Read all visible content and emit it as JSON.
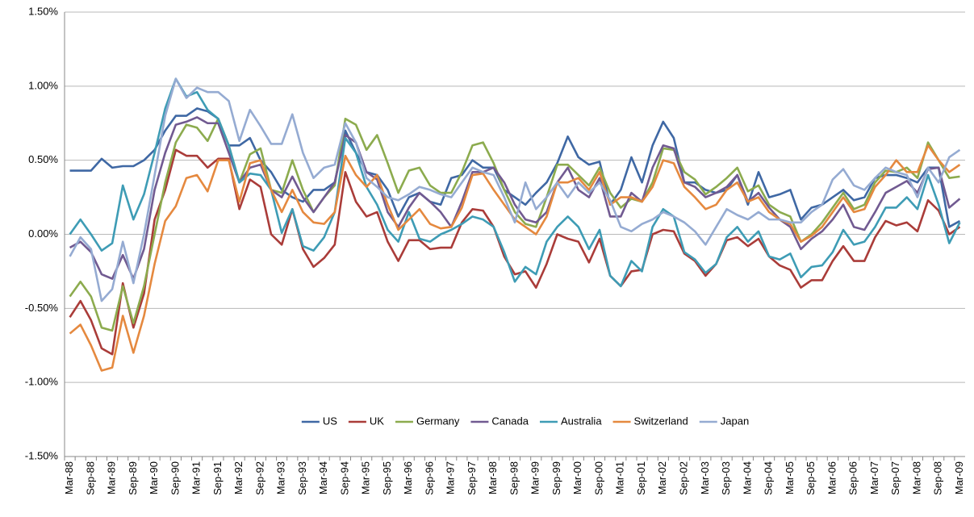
{
  "chart_data": {
    "type": "line",
    "categories": [
      "Mar-88",
      null,
      "Sep-88",
      null,
      "Mar-89",
      null,
      "Sep-89",
      null,
      "Mar-90",
      null,
      "Sep-90",
      null,
      "Mar-91",
      null,
      "Sep-91",
      null,
      "Mar-92",
      null,
      "Sep-92",
      null,
      "Mar-93",
      null,
      "Sep-93",
      null,
      "Mar-94",
      null,
      "Sep-94",
      null,
      "Mar-95",
      null,
      "Sep-95",
      null,
      "Mar-96",
      null,
      "Sep-96",
      null,
      "Mar-97",
      null,
      "Sep-97",
      null,
      "Mar-98",
      null,
      "Sep-98",
      null,
      "Mar-99",
      null,
      "Sep-99",
      null,
      "Mar-00",
      null,
      "Sep-00",
      null,
      "Mar-01",
      null,
      "Sep-01",
      null,
      "Mar-02",
      null,
      "Sep-02",
      null,
      "Mar-03",
      null,
      "Sep-03",
      null,
      "Mar-04",
      null,
      "Sep-04",
      null,
      "Mar-05",
      null,
      "Sep-05",
      null,
      "Mar-06",
      null,
      "Sep-06",
      null,
      "Mar-07",
      null,
      "Sep-07",
      null,
      "Mar-08",
      null,
      "Sep-08",
      null,
      "Mar-09"
    ],
    "series": [
      {
        "name": "US",
        "color": "#3f68a4",
        "values": [
          0.43,
          0.43,
          0.43,
          0.51,
          0.45,
          0.46,
          0.46,
          0.5,
          0.57,
          0.7,
          0.8,
          0.8,
          0.85,
          0.83,
          0.78,
          0.6,
          0.6,
          0.65,
          0.5,
          0.42,
          0.3,
          0.25,
          0.22,
          0.3,
          0.3,
          0.35,
          0.7,
          0.55,
          0.42,
          0.4,
          0.3,
          0.12,
          0.25,
          0.28,
          0.22,
          0.2,
          0.38,
          0.4,
          0.5,
          0.45,
          0.45,
          0.3,
          0.25,
          0.2,
          0.28,
          0.35,
          0.48,
          0.66,
          0.52,
          0.47,
          0.49,
          0.2,
          0.3,
          0.52,
          0.35,
          0.6,
          0.76,
          0.65,
          0.35,
          0.35,
          0.3,
          0.28,
          0.3,
          0.4,
          0.2,
          0.42,
          0.25,
          0.27,
          0.3,
          0.1,
          0.18,
          0.2,
          0.25,
          0.3,
          0.23,
          0.25,
          0.38,
          0.4,
          0.4,
          0.38,
          0.35,
          0.45,
          0.45,
          0.05,
          0.09
        ]
      },
      {
        "name": "UK",
        "color": "#aa3c39",
        "values": [
          -0.56,
          -0.45,
          -0.58,
          -0.77,
          -0.81,
          -0.33,
          -0.63,
          -0.4,
          0.1,
          0.3,
          0.57,
          0.53,
          0.53,
          0.45,
          0.51,
          0.51,
          0.17,
          0.37,
          0.32,
          0,
          -0.07,
          0.17,
          -0.1,
          -0.22,
          -0.16,
          -0.07,
          0.42,
          0.22,
          0.12,
          0.15,
          -0.05,
          -0.18,
          -0.04,
          -0.04,
          -0.1,
          -0.09,
          -0.09,
          0.08,
          0.17,
          0.16,
          0.05,
          -0.15,
          -0.27,
          -0.25,
          -0.36,
          -0.2,
          0,
          -0.03,
          -0.05,
          -0.19,
          -0.03,
          -0.28,
          -0.35,
          -0.25,
          -0.24,
          0,
          0.03,
          0.02,
          -0.13,
          -0.18,
          -0.28,
          -0.2,
          -0.04,
          -0.02,
          -0.08,
          -0.03,
          -0.15,
          -0.21,
          -0.24,
          -0.36,
          -0.31,
          -0.31,
          -0.18,
          -0.08,
          -0.18,
          -0.18,
          -0.02,
          0.09,
          0.06,
          0.08,
          0.02,
          0.23,
          0.16,
          0,
          0.05
        ]
      },
      {
        "name": "Germany",
        "color": "#8cab4e",
        "values": [
          -0.42,
          -0.32,
          -0.42,
          -0.63,
          -0.65,
          -0.35,
          -0.6,
          -0.35,
          0,
          0.35,
          0.62,
          0.74,
          0.72,
          0.63,
          0.78,
          0.6,
          0.35,
          0.54,
          0.58,
          0.3,
          0.28,
          0.5,
          0.3,
          0.15,
          0.25,
          0.33,
          0.78,
          0.74,
          0.57,
          0.67,
          0.48,
          0.28,
          0.43,
          0.45,
          0.33,
          0.28,
          0.28,
          0.42,
          0.6,
          0.62,
          0.48,
          0.3,
          0.15,
          0.07,
          0.05,
          0.25,
          0.47,
          0.47,
          0.4,
          0.33,
          0.45,
          0.28,
          0.18,
          0.24,
          0.22,
          0.35,
          0.58,
          0.57,
          0.42,
          0.37,
          0.27,
          0.32,
          0.38,
          0.45,
          0.29,
          0.33,
          0.2,
          0.15,
          0.12,
          -0.05,
          0,
          0.08,
          0.18,
          0.28,
          0.17,
          0.2,
          0.35,
          0.43,
          0.42,
          0.45,
          0.38,
          0.62,
          0.5,
          0.38,
          0.39
        ]
      },
      {
        "name": "Canada",
        "color": "#715a91",
        "values": [
          -0.09,
          -0.05,
          -0.12,
          -0.27,
          -0.3,
          -0.14,
          -0.3,
          -0.1,
          0.3,
          0.55,
          0.74,
          0.76,
          0.79,
          0.75,
          0.75,
          0.55,
          0.35,
          0.45,
          0.47,
          0.3,
          0.25,
          0.39,
          0.25,
          0.15,
          0.25,
          0.35,
          0.67,
          0.62,
          0.42,
          0.37,
          0.15,
          0.05,
          0.18,
          0.28,
          0.22,
          0.15,
          0.05,
          0.22,
          0.42,
          0.42,
          0.45,
          0.35,
          0.2,
          0.1,
          0.08,
          0.15,
          0.35,
          0.45,
          0.3,
          0.25,
          0.38,
          0.12,
          0.12,
          0.28,
          0.22,
          0.45,
          0.6,
          0.58,
          0.35,
          0.32,
          0.25,
          0.28,
          0.32,
          0.4,
          0.22,
          0.28,
          0.18,
          0.1,
          0.05,
          -0.1,
          -0.03,
          0.02,
          0.1,
          0.2,
          0.05,
          0.03,
          0.15,
          0.28,
          0.32,
          0.36,
          0.28,
          0.44,
          0.45,
          0.18,
          0.24
        ]
      },
      {
        "name": "Australia",
        "color": "#3e9cb5",
        "values": [
          0,
          0.1,
          0,
          -0.11,
          -0.06,
          0.33,
          0.1,
          0.27,
          0.55,
          0.85,
          1.05,
          0.93,
          0.96,
          0.84,
          0.78,
          0.6,
          0.35,
          0.41,
          0.4,
          0.3,
          0.01,
          0.17,
          -0.08,
          -0.11,
          -0.02,
          0.15,
          0.65,
          0.55,
          0.32,
          0.2,
          0.03,
          -0.05,
          0.15,
          -0.03,
          -0.05,
          0,
          0.03,
          0.07,
          0.12,
          0.1,
          0.05,
          -0.12,
          -0.32,
          -0.22,
          -0.27,
          -0.05,
          0.05,
          0.12,
          0.05,
          -0.1,
          0.03,
          -0.28,
          -0.35,
          -0.18,
          -0.25,
          0.05,
          0.17,
          0.12,
          -0.12,
          -0.17,
          -0.26,
          -0.2,
          -0.02,
          0.05,
          -0.05,
          0.02,
          -0.15,
          -0.17,
          -0.13,
          -0.29,
          -0.22,
          -0.21,
          -0.12,
          0.03,
          -0.07,
          -0.05,
          0.05,
          0.18,
          0.18,
          0.25,
          0.17,
          0.4,
          0.2,
          -0.06,
          0.08
        ]
      },
      {
        "name": "Switzerland",
        "color": "#e5893f",
        "values": [
          -0.67,
          -0.61,
          -0.75,
          -0.92,
          -0.9,
          -0.55,
          -0.8,
          -0.55,
          -0.2,
          0.09,
          0.19,
          0.38,
          0.4,
          0.29,
          0.5,
          0.5,
          0.22,
          0.48,
          0.5,
          0.3,
          0.15,
          0.3,
          0.15,
          0.08,
          0.07,
          0.15,
          0.53,
          0.4,
          0.32,
          0.4,
          0.2,
          0.03,
          0.1,
          0.17,
          0.07,
          0.04,
          0.05,
          0.18,
          0.4,
          0.41,
          0.3,
          0.2,
          0.1,
          0.05,
          0,
          0.12,
          0.35,
          0.35,
          0.38,
          0.3,
          0.42,
          0.2,
          0.25,
          0.25,
          0.22,
          0.32,
          0.5,
          0.48,
          0.32,
          0.25,
          0.17,
          0.2,
          0.3,
          0.35,
          0.22,
          0.25,
          0.15,
          0.1,
          0.07,
          -0.05,
          -0.01,
          0.05,
          0.15,
          0.25,
          0.15,
          0.17,
          0.32,
          0.4,
          0.5,
          0.42,
          0.42,
          0.6,
          0.5,
          0.42,
          0.47
        ]
      },
      {
        "name": "Japan",
        "color": "#95abd2",
        "values": [
          -0.15,
          -0.02,
          -0.1,
          -0.45,
          -0.37,
          -0.05,
          -0.33,
          0,
          0.4,
          0.8,
          1.05,
          0.92,
          0.99,
          0.96,
          0.96,
          0.9,
          0.63,
          0.84,
          0.73,
          0.61,
          0.61,
          0.81,
          0.55,
          0.38,
          0.45,
          0.47,
          0.75,
          0.62,
          0.38,
          0.32,
          0.25,
          0.23,
          0.27,
          0.32,
          0.3,
          0.27,
          0.25,
          0.35,
          0.45,
          0.42,
          0.4,
          0.25,
          0.08,
          0.35,
          0.17,
          0.25,
          0.35,
          0.25,
          0.35,
          0.28,
          0.35,
          0.23,
          0.05,
          0.02,
          0.07,
          0.1,
          0.15,
          0.12,
          0.08,
          0.02,
          -0.07,
          0.05,
          0.17,
          0.13,
          0.1,
          0.15,
          0.1,
          0.1,
          0.08,
          0.08,
          0.15,
          0.2,
          0.37,
          0.44,
          0.33,
          0.3,
          0.38,
          0.45,
          0.42,
          0.4,
          0.25,
          0.45,
          0.35,
          0.52,
          0.57
        ]
      }
    ],
    "ylim": [
      -1.5,
      1.5
    ],
    "yticks": [
      {
        "value": -1.5,
        "label": "-1.50%"
      },
      {
        "value": -1.0,
        "label": "-1.00%"
      },
      {
        "value": -0.5,
        "label": "-0.50%"
      },
      {
        "value": 0,
        "label": "0.00%"
      },
      {
        "value": 0.5,
        "label": "0.50%"
      },
      {
        "value": 1.0,
        "label": "1.00%"
      },
      {
        "value": 1.5,
        "label": "1.50%"
      }
    ],
    "grid": true,
    "legend": "bottom"
  }
}
